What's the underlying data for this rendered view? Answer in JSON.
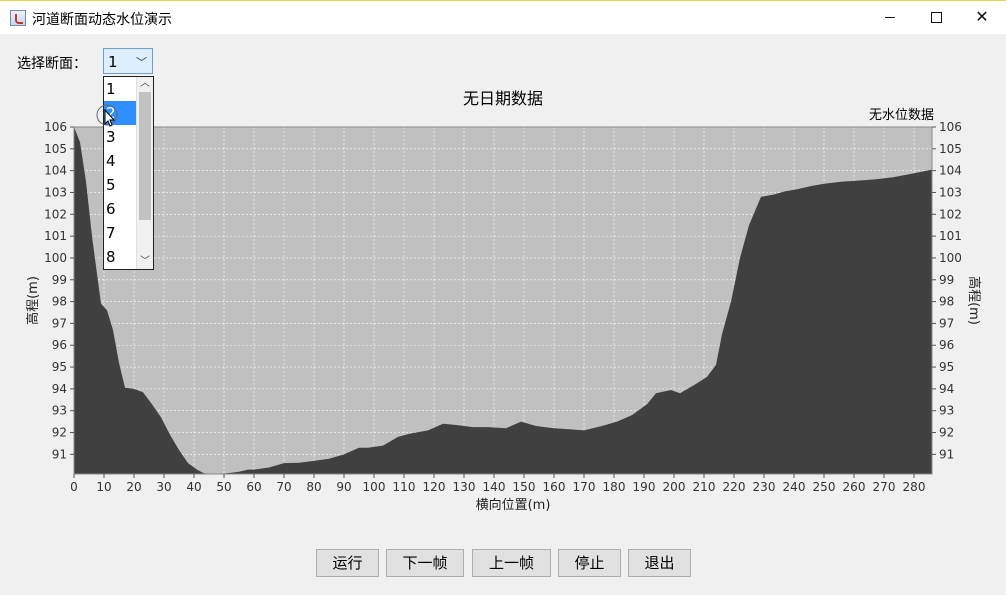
{
  "window": {
    "title": "河道断面动态水位演示",
    "icon": "java-app-icon"
  },
  "controls": {
    "section_label": "选择断面：",
    "section_value": "1",
    "dropdown": {
      "items": [
        "1",
        "2",
        "3",
        "4",
        "5",
        "6",
        "7",
        "8"
      ],
      "highlighted_index": 1
    }
  },
  "chart_data": {
    "type": "area",
    "title": "无日期数据",
    "subtitle": "无水位数据",
    "xlabel": "横向位置(m)",
    "ylabel": "高程(m)",
    "ylabel_right": "高程(m)",
    "xlim": [
      0,
      286
    ],
    "ylim": [
      90.1,
      106
    ],
    "xticks": [
      0,
      10,
      20,
      30,
      40,
      50,
      60,
      70,
      80,
      90,
      100,
      110,
      120,
      130,
      140,
      150,
      160,
      170,
      180,
      190,
      200,
      210,
      220,
      230,
      240,
      250,
      260,
      270,
      280
    ],
    "yticks": [
      91,
      92,
      93,
      94,
      95,
      96,
      97,
      98,
      99,
      100,
      101,
      102,
      103,
      104,
      105,
      106
    ],
    "grid": true,
    "colors": {
      "ground": "#404040",
      "background": "#c0c0c0",
      "grid": "#ffffff"
    },
    "x": [
      0,
      2,
      4,
      6,
      9,
      11,
      13,
      15,
      17,
      20,
      23,
      26,
      29,
      32,
      35,
      38,
      41,
      43,
      45,
      48,
      52,
      55,
      58,
      60,
      65,
      70,
      75,
      80,
      85,
      90,
      95,
      98,
      103,
      108,
      112,
      118,
      123,
      127,
      133,
      138,
      144,
      149,
      154,
      160,
      165,
      170,
      176,
      181,
      186,
      191,
      194,
      199,
      202,
      207,
      211,
      214,
      216,
      219,
      222,
      225,
      229,
      233,
      237,
      241,
      246,
      250,
      256,
      262,
      267,
      273,
      279,
      286
    ],
    "y": [
      106,
      105.3,
      103.5,
      101,
      97.9,
      97.6,
      96.7,
      95.2,
      94.05,
      94,
      93.85,
      93.3,
      92.7,
      91.9,
      91.2,
      90.6,
      90.3,
      90.15,
      90.1,
      90.1,
      90.15,
      90.2,
      90.3,
      90.3,
      90.4,
      90.6,
      90.62,
      90.7,
      90.8,
      91,
      91.3,
      91.3,
      91.4,
      91.8,
      91.95,
      92.1,
      92.4,
      92.35,
      92.25,
      92.25,
      92.2,
      92.5,
      92.3,
      92.2,
      92.15,
      92.1,
      92.3,
      92.5,
      92.8,
      93.3,
      93.8,
      93.95,
      93.8,
      94.2,
      94.55,
      95.1,
      96.5,
      98,
      100,
      101.5,
      102.8,
      102.9,
      103.05,
      103.15,
      103.3,
      103.4,
      103.5,
      103.55,
      103.6,
      103.7,
      103.85,
      104.05
    ]
  },
  "buttons": {
    "run": "运行",
    "next": "下一帧",
    "prev": "上一帧",
    "stop": "停止",
    "exit": "退出"
  }
}
